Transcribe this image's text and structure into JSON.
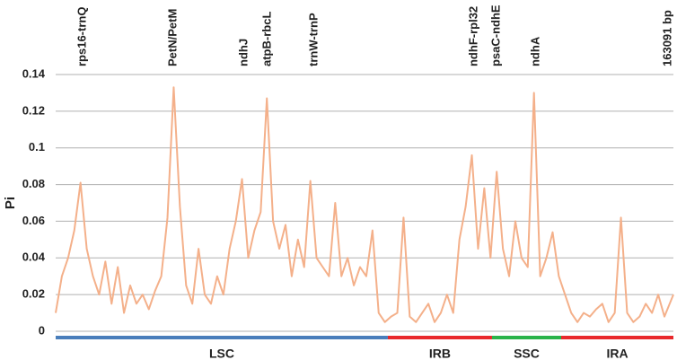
{
  "chart_data": {
    "type": "line",
    "y_label": "Pi",
    "xlim": [
      0,
      163091
    ],
    "ylim": [
      0,
      0.14
    ],
    "yticks": [
      0,
      0.02,
      0.04,
      0.06,
      0.08,
      0.1,
      0.12,
      0.14
    ],
    "grid": true,
    "color": "#f4b08a",
    "x": [
      0,
      1640,
      3280,
      4920,
      6560,
      8200,
      9840,
      11480,
      13120,
      14760,
      16400,
      18040,
      19680,
      21320,
      22960,
      24600,
      26240,
      27880,
      29520,
      31160,
      32800,
      34440,
      36080,
      37720,
      39360,
      41000,
      42640,
      44280,
      45920,
      47560,
      49200,
      50840,
      52480,
      54120,
      55760,
      57400,
      59040,
      60680,
      62320,
      63960,
      65600,
      67240,
      68880,
      70520,
      72160,
      73800,
      75440,
      77080,
      78720,
      80360,
      82000,
      83640,
      85280,
      86920,
      88560,
      90200,
      91840,
      93480,
      95120,
      96760,
      98400,
      100040,
      101680,
      103320,
      104960,
      106600,
      108240,
      109880,
      111520,
      113160,
      114800,
      116440,
      118080,
      119720,
      121360,
      123000,
      124640,
      126280,
      127920,
      129560,
      131200,
      132840,
      134480,
      136120,
      137760,
      139400,
      141040,
      142680,
      144320,
      145960,
      147600,
      149240,
      150880,
      152520,
      154160,
      155800,
      157440,
      159080,
      160720,
      163091
    ],
    "values": [
      0.01,
      0.03,
      0.04,
      0.055,
      0.081,
      0.045,
      0.03,
      0.02,
      0.038,
      0.015,
      0.035,
      0.01,
      0.025,
      0.015,
      0.02,
      0.012,
      0.022,
      0.03,
      0.062,
      0.133,
      0.068,
      0.025,
      0.015,
      0.045,
      0.02,
      0.015,
      0.03,
      0.02,
      0.045,
      0.06,
      0.083,
      0.04,
      0.055,
      0.065,
      0.127,
      0.06,
      0.045,
      0.058,
      0.03,
      0.05,
      0.035,
      0.082,
      0.04,
      0.035,
      0.03,
      0.07,
      0.03,
      0.04,
      0.025,
      0.035,
      0.03,
      0.055,
      0.01,
      0.005,
      0.008,
      0.01,
      0.062,
      0.008,
      0.005,
      0.01,
      0.015,
      0.005,
      0.01,
      0.02,
      0.01,
      0.05,
      0.068,
      0.096,
      0.045,
      0.078,
      0.04,
      0.087,
      0.045,
      0.03,
      0.06,
      0.04,
      0.035,
      0.13,
      0.03,
      0.04,
      0.054,
      0.03,
      0.02,
      0.01,
      0.005,
      0.01,
      0.008,
      0.012,
      0.015,
      0.005,
      0.01,
      0.062,
      0.01,
      0.005,
      0.008,
      0.015,
      0.01,
      0.02,
      0.008,
      0.02
    ],
    "annotations": [
      {
        "text": "rps16-trnQ",
        "x": 7100
      },
      {
        "text": "PetN/PetM",
        "x": 31050
      },
      {
        "text": "ndhJ",
        "x": 49800
      },
      {
        "text": "atpB-rbcL",
        "x": 55950
      },
      {
        "text": "trnW-trnP",
        "x": 68270
      },
      {
        "text": "ndhF-rpl32",
        "x": 110460
      },
      {
        "text": "psaC-ndhE",
        "x": 116390
      },
      {
        "text": "ndhA",
        "x": 126820
      },
      {
        "text": "163091 bp",
        "x": 163091
      }
    ],
    "regions": [
      {
        "name": "LSC",
        "start": 0,
        "end": 87700,
        "color": "#4a7ebb"
      },
      {
        "name": "IRB",
        "start": 87700,
        "end": 115200,
        "color": "#e8282b"
      },
      {
        "name": "SSC",
        "start": 115200,
        "end": 133460,
        "color": "#2ab34a"
      },
      {
        "name": "IRA",
        "start": 133460,
        "end": 163091,
        "color": "#e8282b"
      }
    ]
  }
}
